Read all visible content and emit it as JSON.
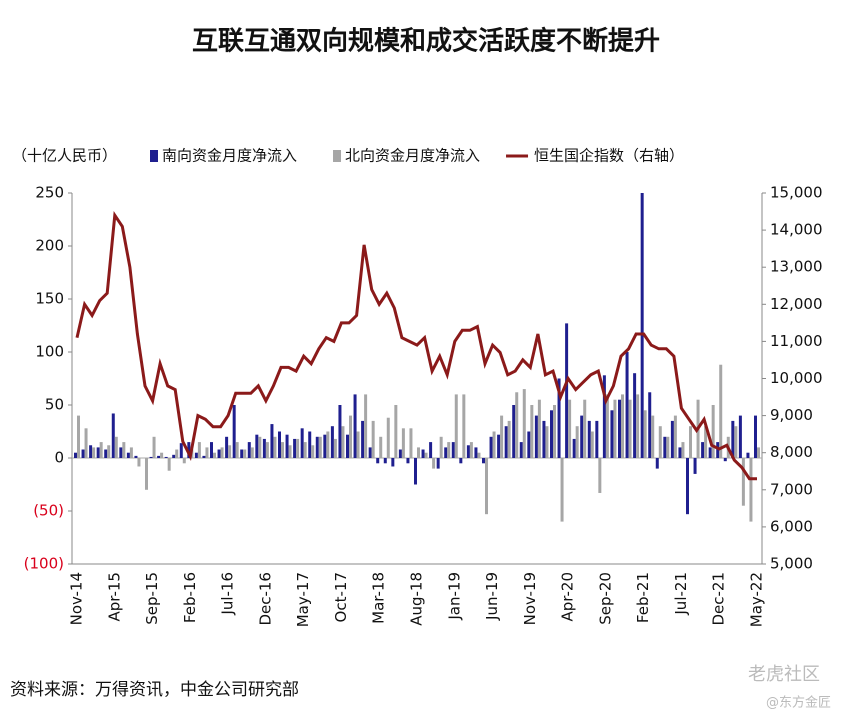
{
  "chart_data": {
    "type": "bar_line",
    "title": "互联互通双向规模和成交活跃度不断提升",
    "y_axis_label": "（十亿人民币）",
    "source": "资料来源：万得资讯，中金公司研究部",
    "watermark": [
      "老虎社区",
      "@东方金匠"
    ],
    "categories": [
      "Nov-14",
      null,
      null,
      null,
      null,
      "Apr-15",
      null,
      null,
      null,
      null,
      "Sep-15",
      null,
      null,
      null,
      null,
      "Feb-16",
      null,
      null,
      null,
      null,
      "Jul-16",
      null,
      null,
      null,
      null,
      "Dec-16",
      null,
      null,
      null,
      null,
      "May-17",
      null,
      null,
      null,
      null,
      "Oct-17",
      null,
      null,
      null,
      null,
      "Mar-18",
      null,
      null,
      null,
      null,
      "Aug-18",
      null,
      null,
      null,
      null,
      "Jan-19",
      null,
      null,
      null,
      null,
      "Jun-19",
      null,
      null,
      null,
      null,
      "Nov-19",
      null,
      null,
      null,
      null,
      "Apr-20",
      null,
      null,
      null,
      null,
      "Sep-20",
      null,
      null,
      null,
      null,
      "Feb-21",
      null,
      null,
      null,
      null,
      "Jul-21",
      null,
      null,
      null,
      null,
      "Dec-21",
      null,
      null,
      null,
      null,
      "May-22"
    ],
    "series": [
      {
        "name": "南向资金月度净流入",
        "color": "#1f1f8f",
        "kind": "bar",
        "values": [
          5,
          8,
          12,
          10,
          8,
          42,
          10,
          5,
          2,
          0,
          1,
          2,
          1,
          3,
          14,
          15,
          5,
          2,
          15,
          8,
          20,
          50,
          8,
          15,
          22,
          18,
          32,
          25,
          22,
          18,
          28,
          25,
          20,
          22,
          30,
          50,
          22,
          60,
          35,
          10,
          -5,
          -5,
          -8,
          8,
          -5,
          -25,
          8,
          15,
          -10,
          10,
          15,
          -5,
          12,
          10,
          -5,
          20,
          22,
          30,
          50,
          15,
          25,
          40,
          35,
          45,
          75,
          127,
          18,
          40,
          35,
          35,
          78,
          45,
          55,
          100,
          80,
          250,
          62,
          -10,
          20,
          35,
          10,
          -53,
          -15,
          15,
          10,
          15,
          -3,
          35,
          40,
          5,
          40
        ]
      },
      {
        "name": "北向资金月度净流入",
        "color": "#a6a6a6",
        "kind": "bar",
        "values": [
          40,
          28,
          10,
          15,
          12,
          20,
          15,
          10,
          -8,
          -30,
          20,
          5,
          -12,
          8,
          -5,
          8,
          15,
          10,
          5,
          10,
          12,
          15,
          8,
          10,
          20,
          15,
          20,
          15,
          12,
          18,
          15,
          12,
          20,
          25,
          18,
          30,
          40,
          25,
          60,
          35,
          20,
          38,
          50,
          28,
          28,
          10,
          5,
          -10,
          20,
          15,
          60,
          60,
          15,
          5,
          -53,
          25,
          40,
          35,
          62,
          65,
          50,
          55,
          30,
          50,
          -60,
          55,
          30,
          55,
          25,
          -33,
          60,
          55,
          60,
          55,
          60,
          45,
          40,
          30,
          20,
          40,
          15,
          30,
          55,
          30,
          50,
          88,
          20,
          30,
          -45,
          -60,
          10
        ]
      },
      {
        "name": "恒生国企指数（右轴）",
        "color": "#8b1a1a",
        "kind": "line",
        "axis": "y2",
        "values": [
          11100,
          12000,
          11700,
          12100,
          12300,
          14400,
          14100,
          13000,
          11200,
          9800,
          9400,
          10400,
          9800,
          9700,
          8300,
          7900,
          9000,
          8900,
          8700,
          8700,
          9000,
          9600,
          9600,
          9600,
          9800,
          9400,
          9800,
          10300,
          10300,
          10200,
          10600,
          10400,
          10800,
          11100,
          11000,
          11500,
          11500,
          11700,
          13600,
          12400,
          12000,
          12300,
          11900,
          11100,
          11000,
          10900,
          11100,
          10200,
          10600,
          10100,
          11000,
          11300,
          11300,
          11400,
          10400,
          10900,
          10700,
          10100,
          10200,
          10500,
          10300,
          11200,
          10100,
          10200,
          9500,
          10000,
          9700,
          9900,
          10100,
          10200,
          9400,
          9800,
          10600,
          10800,
          11200,
          11200,
          10900,
          10800,
          10800,
          10600,
          9200,
          8900,
          8600,
          8900,
          8200,
          8100,
          8200,
          7800,
          7600,
          7300,
          7300
        ]
      }
    ],
    "ylim": [
      -100,
      250
    ],
    "yticks": [
      {
        "value": -100,
        "label": "(100)"
      },
      {
        "value": -50,
        "label": "(50)"
      },
      0,
      50,
      100,
      150,
      200,
      250
    ],
    "y2lim": [
      5000,
      15000
    ],
    "y2ticks": [
      {
        "value": 5000,
        "label": "5,000"
      },
      {
        "value": 6000,
        "label": "6,000"
      },
      {
        "value": 7000,
        "label": "7,000"
      },
      {
        "value": 8000,
        "label": "8,000"
      },
      {
        "value": 9000,
        "label": "9,000"
      },
      {
        "value": 10000,
        "label": "10,000"
      },
      {
        "value": 11000,
        "label": "11,000"
      },
      {
        "value": 12000,
        "label": "12,000"
      },
      {
        "value": 13000,
        "label": "13,000"
      },
      {
        "value": 14000,
        "label": "14,000"
      },
      {
        "value": 15000,
        "label": "15,000"
      }
    ]
  }
}
